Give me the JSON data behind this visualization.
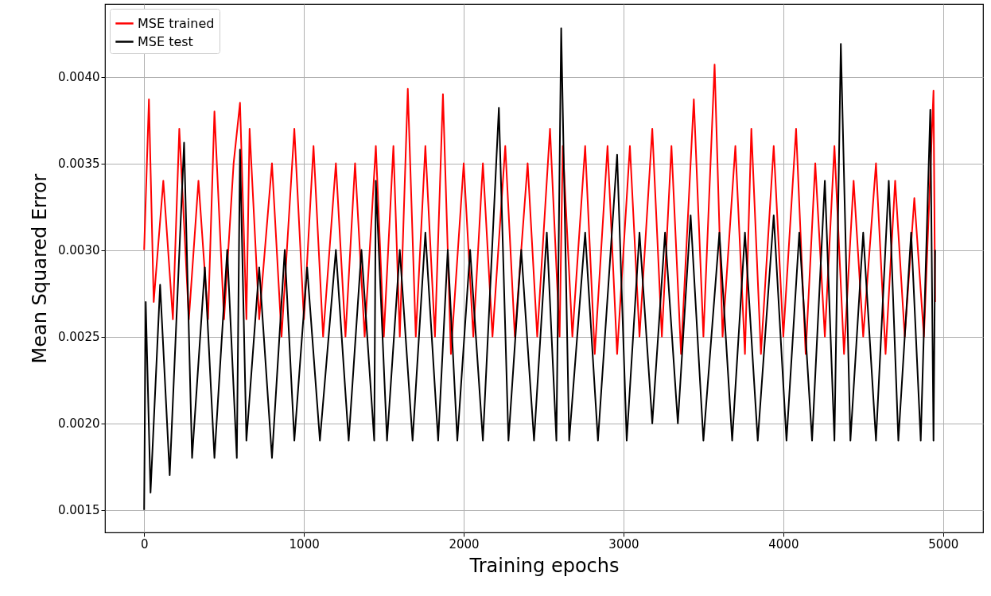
{
  "chart_data": {
    "type": "line",
    "xlabel": "Training epochs",
    "ylabel": "Mean Squared Error",
    "xlim": [
      -245,
      5250
    ],
    "ylim": [
      0.00137,
      0.00442
    ],
    "xticks": [
      0,
      1000,
      2000,
      3000,
      4000,
      5000
    ],
    "yticks": [
      {
        "value": 0.0015,
        "label": "0.0015"
      },
      {
        "value": 0.002,
        "label": "0.0020"
      },
      {
        "value": 0.0025,
        "label": "0.0025"
      },
      {
        "value": 0.003,
        "label": "0.0030"
      },
      {
        "value": 0.0035,
        "label": "0.0035"
      },
      {
        "value": 0.004,
        "label": "0.0040"
      }
    ],
    "grid": true,
    "legend": "top left",
    "line_style": "solid",
    "marker": "none",
    "series": [
      {
        "name": "MSE trained",
        "color": "#ff0000",
        "x": [
          0,
          30,
          60,
          120,
          180,
          220,
          280,
          340,
          400,
          440,
          500,
          560,
          600,
          640,
          660,
          720,
          800,
          860,
          940,
          1000,
          1060,
          1120,
          1200,
          1260,
          1320,
          1380,
          1450,
          1500,
          1560,
          1600,
          1650,
          1700,
          1760,
          1820,
          1870,
          1920,
          2000,
          2060,
          2120,
          2180,
          2260,
          2320,
          2400,
          2460,
          2540,
          2600,
          2620,
          2680,
          2760,
          2820,
          2900,
          2960,
          3040,
          3100,
          3180,
          3240,
          3300,
          3360,
          3440,
          3500,
          3570,
          3620,
          3700,
          3760,
          3800,
          3860,
          3940,
          4000,
          4080,
          4140,
          4200,
          4260,
          4320,
          4380,
          4440,
          4500,
          4580,
          4640,
          4700,
          4760,
          4820,
          4880,
          4940,
          4950
        ],
        "values": [
          0.003,
          0.00387,
          0.0027,
          0.0034,
          0.0026,
          0.0037,
          0.0026,
          0.0034,
          0.0026,
          0.0038,
          0.0026,
          0.0035,
          0.00385,
          0.0026,
          0.0037,
          0.0026,
          0.0035,
          0.0025,
          0.0037,
          0.0026,
          0.0036,
          0.0025,
          0.0035,
          0.0025,
          0.0035,
          0.0025,
          0.0036,
          0.0025,
          0.0036,
          0.0025,
          0.00393,
          0.0025,
          0.0036,
          0.0025,
          0.0039,
          0.0024,
          0.0035,
          0.0025,
          0.0035,
          0.0025,
          0.0036,
          0.0025,
          0.0035,
          0.0025,
          0.0037,
          0.0025,
          0.0036,
          0.0025,
          0.0036,
          0.0024,
          0.0036,
          0.0024,
          0.0036,
          0.0025,
          0.0037,
          0.0025,
          0.0036,
          0.0024,
          0.00387,
          0.0025,
          0.00407,
          0.0025,
          0.0036,
          0.0024,
          0.0037,
          0.0024,
          0.0036,
          0.0025,
          0.0037,
          0.0024,
          0.0035,
          0.0025,
          0.0036,
          0.0024,
          0.0034,
          0.0025,
          0.0035,
          0.0024,
          0.0034,
          0.0025,
          0.0033,
          0.0025,
          0.00392,
          0.0027
        ]
      },
      {
        "name": "MSE test",
        "color": "#000000",
        "x": [
          0,
          10,
          40,
          100,
          160,
          250,
          300,
          380,
          440,
          520,
          580,
          600,
          640,
          720,
          800,
          880,
          940,
          1020,
          1100,
          1200,
          1280,
          1360,
          1440,
          1450,
          1520,
          1600,
          1680,
          1760,
          1840,
          1900,
          1960,
          2040,
          2120,
          2220,
          2280,
          2360,
          2440,
          2520,
          2580,
          2610,
          2660,
          2760,
          2840,
          2960,
          3020,
          3100,
          3180,
          3260,
          3340,
          3420,
          3500,
          3600,
          3680,
          3760,
          3840,
          3940,
          4020,
          4100,
          4180,
          4260,
          4320,
          4360,
          4420,
          4500,
          4580,
          4660,
          4720,
          4800,
          4860,
          4920,
          4940,
          4950
        ],
        "values": [
          0.0015,
          0.0027,
          0.0016,
          0.0028,
          0.0017,
          0.00362,
          0.0018,
          0.0029,
          0.0018,
          0.003,
          0.0018,
          0.00358,
          0.0019,
          0.0029,
          0.0018,
          0.003,
          0.0019,
          0.0029,
          0.0019,
          0.003,
          0.0019,
          0.003,
          0.0019,
          0.0034,
          0.0019,
          0.003,
          0.0019,
          0.0031,
          0.0019,
          0.003,
          0.0019,
          0.003,
          0.0019,
          0.00382,
          0.0019,
          0.003,
          0.0019,
          0.0031,
          0.0019,
          0.00428,
          0.0019,
          0.0031,
          0.0019,
          0.00355,
          0.0019,
          0.0031,
          0.002,
          0.0031,
          0.002,
          0.0032,
          0.0019,
          0.0031,
          0.0019,
          0.0031,
          0.0019,
          0.0032,
          0.0019,
          0.0031,
          0.0019,
          0.0034,
          0.0019,
          0.00419,
          0.0019,
          0.0031,
          0.0019,
          0.0034,
          0.0019,
          0.0031,
          0.0019,
          0.00381,
          0.0019,
          0.003
        ]
      }
    ]
  }
}
